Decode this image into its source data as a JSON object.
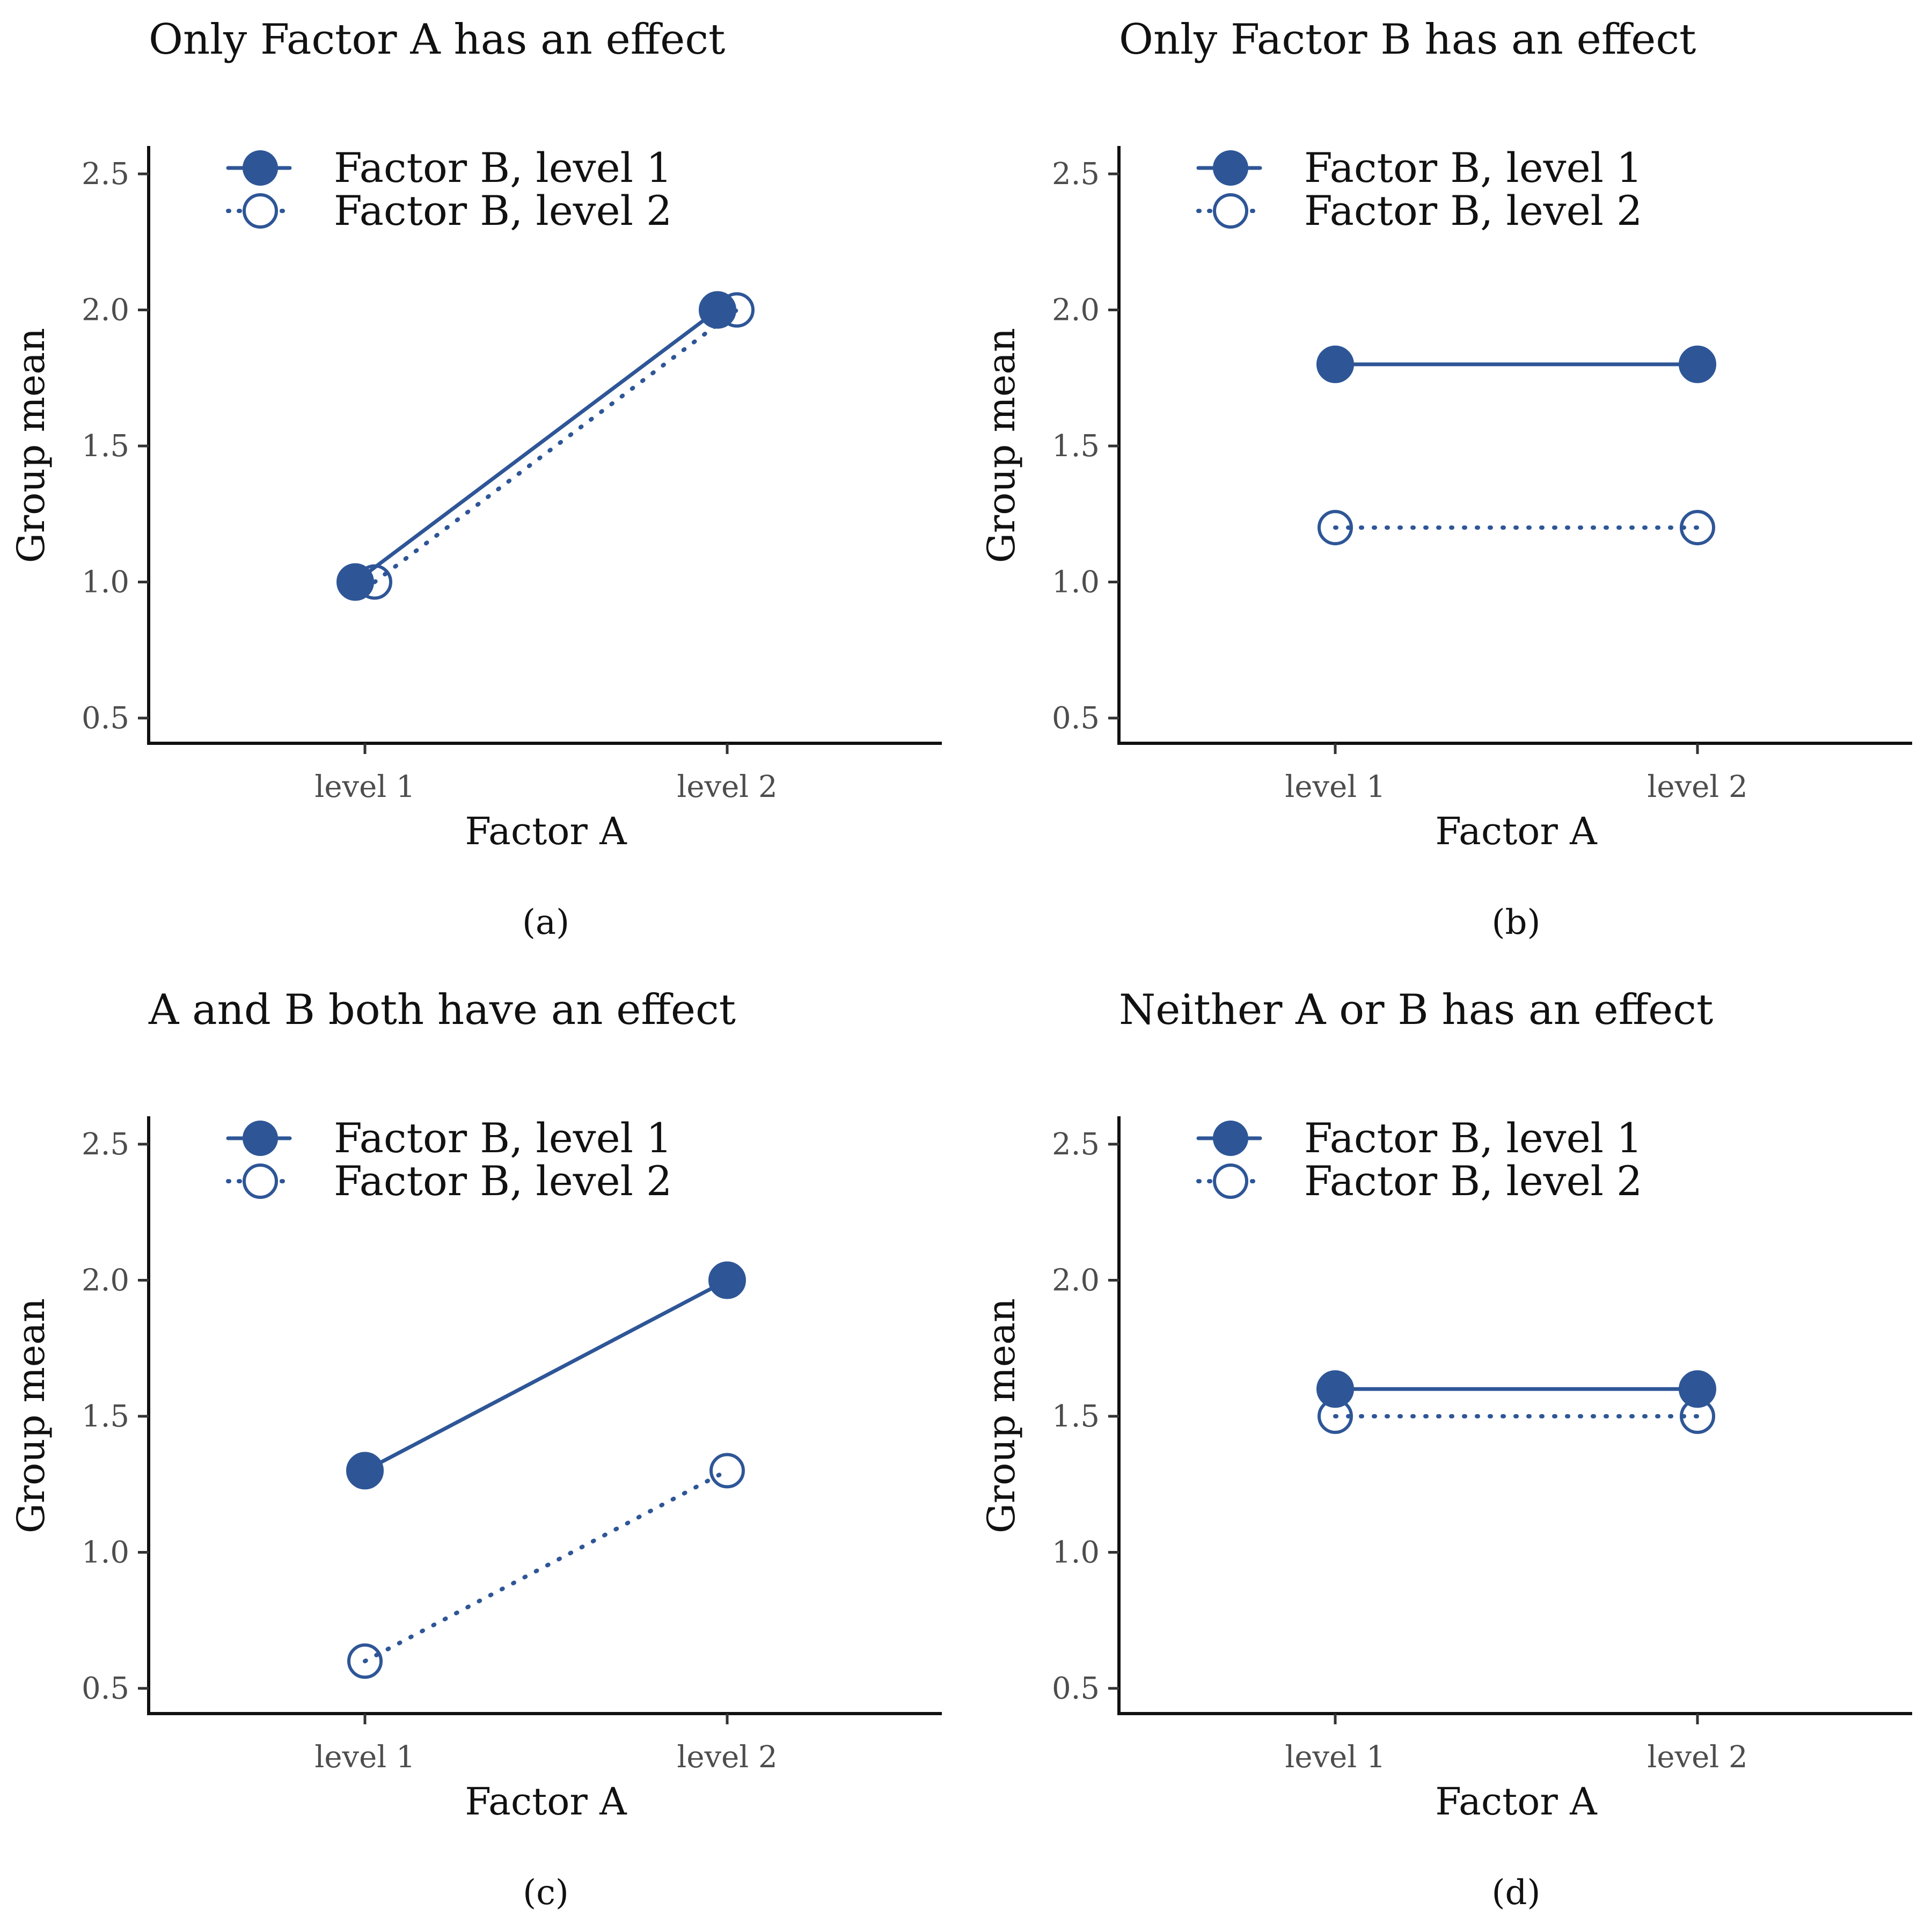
{
  "figure": {
    "series_color": "#2e5697"
  },
  "chart_data": [
    {
      "type": "line",
      "title": "Only Factor A has an effect",
      "caption": "(a)",
      "xlabel": "Factor A",
      "ylabel": "Group mean",
      "categories": [
        "level 1",
        "level 2"
      ],
      "yticks": [
        "0.5",
        "1.0",
        "1.5",
        "2.0",
        "2.5"
      ],
      "ylim": [
        0.4,
        2.6
      ],
      "grid": false,
      "legend_position": "top-left",
      "series": [
        {
          "name": "Factor B, level 1",
          "values": [
            1.0,
            2.0
          ],
          "line": "solid",
          "marker": "filled-circle"
        },
        {
          "name": "Factor B, level 2",
          "values": [
            1.0,
            2.0
          ],
          "line": "dotted",
          "marker": "open-circle"
        }
      ]
    },
    {
      "type": "line",
      "title": "Only Factor B has an effect",
      "caption": "(b)",
      "xlabel": "Factor A",
      "ylabel": "Group mean",
      "categories": [
        "level 1",
        "level 2"
      ],
      "yticks": [
        "0.5",
        "1.0",
        "1.5",
        "2.0",
        "2.5"
      ],
      "ylim": [
        0.4,
        2.6
      ],
      "grid": false,
      "legend_position": "top-left",
      "series": [
        {
          "name": "Factor B, level 1",
          "values": [
            1.8,
            1.8
          ],
          "line": "solid",
          "marker": "filled-circle"
        },
        {
          "name": "Factor B, level 2",
          "values": [
            1.2,
            1.2
          ],
          "line": "dotted",
          "marker": "open-circle"
        }
      ]
    },
    {
      "type": "line",
      "title": "A and B both have an effect",
      "caption": "(c)",
      "xlabel": "Factor A",
      "ylabel": "Group mean",
      "categories": [
        "level 1",
        "level 2"
      ],
      "yticks": [
        "0.5",
        "1.0",
        "1.5",
        "2.0",
        "2.5"
      ],
      "ylim": [
        0.4,
        2.6
      ],
      "grid": false,
      "legend_position": "top-left",
      "series": [
        {
          "name": "Factor B, level 1",
          "values": [
            1.3,
            2.0
          ],
          "line": "solid",
          "marker": "filled-circle"
        },
        {
          "name": "Factor B, level 2",
          "values": [
            0.6,
            1.3
          ],
          "line": "dotted",
          "marker": "open-circle"
        }
      ]
    },
    {
      "type": "line",
      "title": "Neither A or B has an effect",
      "caption": "(d)",
      "xlabel": "Factor A",
      "ylabel": "Group mean",
      "categories": [
        "level 1",
        "level 2"
      ],
      "yticks": [
        "0.5",
        "1.0",
        "1.5",
        "2.0",
        "2.5"
      ],
      "ylim": [
        0.4,
        2.6
      ],
      "grid": false,
      "legend_position": "top-left",
      "series": [
        {
          "name": "Factor B, level 1",
          "values": [
            1.6,
            1.6
          ],
          "line": "solid",
          "marker": "filled-circle"
        },
        {
          "name": "Factor B, level 2",
          "values": [
            1.5,
            1.5
          ],
          "line": "dotted",
          "marker": "open-circle"
        }
      ]
    }
  ]
}
